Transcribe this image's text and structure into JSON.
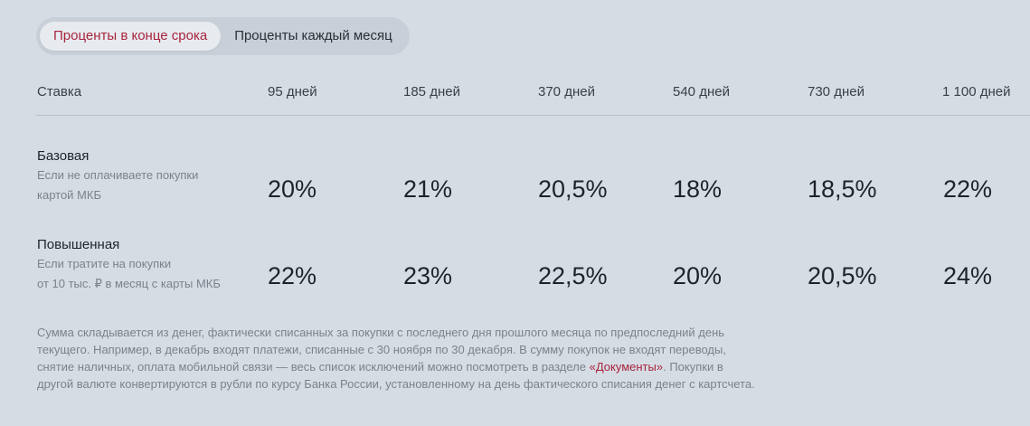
{
  "tabs": [
    {
      "label": "Проценты в конце срока",
      "active": true
    },
    {
      "label": "Проценты каждый месяц",
      "active": false
    }
  ],
  "table": {
    "header": {
      "rate_label": "Ставка",
      "terms": [
        "95 дней",
        "185 дней",
        "370 дней",
        "540 дней",
        "730 дней",
        "1 100 дней"
      ]
    },
    "rows": [
      {
        "title": "Базовая",
        "desc_line1": "Если не оплачиваете покупки",
        "desc_line2": "картой МКБ",
        "rates": [
          "20%",
          "21%",
          "20,5%",
          "18%",
          "18,5%",
          "22%"
        ]
      },
      {
        "title": "Повышенная",
        "desc_line1": "Если тратите на покупки",
        "desc_line2": "от 10 тыс. ₽ в месяц с карты МКБ",
        "rates": [
          "22%",
          "23%",
          "22,5%",
          "20%",
          "20,5%",
          "24%"
        ]
      }
    ]
  },
  "note": {
    "text_before_link": "Сумма складывается из денег, фактически списанных за покупки с последнего дня прошлого месяца по предпоследний день текущего. Например, в декабрь входят платежи, списанные с 30 ноября по 30 декабря. В сумму покупок не входят переводы, снятие наличных, оплата мобильной связи — весь список исключений можно посмотреть в разделе ",
    "link_text": "«Документы»",
    "text_after_link": ". Покупки в другой валюте конвертируются в рубли по курсу Банка России, установленному на день фактического списания денег с картсчета."
  },
  "colors": {
    "background": "#d6dce4",
    "accent": "#a8243c",
    "muted_text": "#7b828c"
  }
}
